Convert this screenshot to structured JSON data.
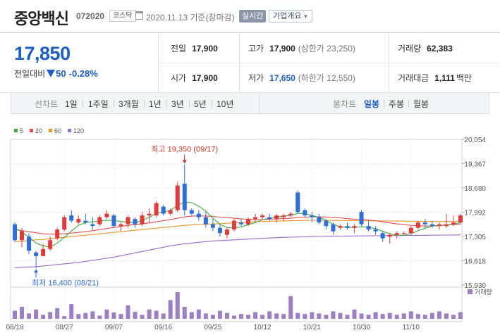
{
  "stock": {
    "name": "중앙백신",
    "code": "072020",
    "market": "코스닥",
    "date": "2020.11.13",
    "basis": "기준(장마감)",
    "realtime_label": "실시간",
    "company_info_label": "기업개요"
  },
  "price": {
    "current": "17,850",
    "change_label": "전일대비",
    "change": "50",
    "change_pct": "-0.28%"
  },
  "quote": {
    "prev": {
      "label": "전일",
      "value": "17,900"
    },
    "high": {
      "label": "고가",
      "value": "17,900",
      "sub_label": "(상한가",
      "sub_value": "23,250)"
    },
    "volume": {
      "label": "거래량",
      "value": "62,383"
    },
    "open": {
      "label": "시가",
      "value": "17,900"
    },
    "low": {
      "label": "저가",
      "value": "17,650",
      "sub_label": "(하한가",
      "sub_value": "12,550)"
    },
    "amount": {
      "label": "거래대금",
      "value": "1,111",
      "unit": "백만"
    }
  },
  "periods": {
    "line_label": "선차트",
    "line": [
      "1일",
      "1주일",
      "3개월",
      "1년",
      "3년",
      "5년",
      "10년"
    ],
    "candle_label": "봉차트",
    "candle": [
      "일봉",
      "주봉",
      "월봉"
    ],
    "active_candle": "일봉"
  },
  "colors": {
    "up": "#e03b3b",
    "down": "#2f6fd6",
    "ma5": "#3faa3f",
    "ma20": "#e05050",
    "ma60": "#e8962a",
    "ma120": "#9b6bcc",
    "volume": "#9d7fc4"
  },
  "chart_data": {
    "type": "candlestick",
    "legend": [
      {
        "name": "5",
        "color": "#3faa3f"
      },
      {
        "name": "20",
        "color": "#e05050"
      },
      {
        "name": "60",
        "color": "#e8962a"
      },
      {
        "name": "120",
        "color": "#9b6bcc"
      }
    ],
    "y_ticks": [
      "20,054",
      "19,367",
      "18,680",
      "17,992",
      "17,305",
      "16,618",
      "15,930"
    ],
    "ylim": [
      15930,
      20054
    ],
    "x_labels": [
      "08/18",
      "08/27",
      "09/07",
      "09/16",
      "09/25",
      "10/12",
      "10/21",
      "10/30",
      "11/10"
    ],
    "x_label_index": [
      0,
      7,
      14,
      21,
      28,
      35,
      42,
      49,
      56
    ],
    "high_annotation": "최고 19,350 (09/17)",
    "low_annotation": "최저 16,400 (08/21)",
    "volume_label": "거래량",
    "candles": [
      {
        "o": 17650,
        "h": 17700,
        "l": 17150,
        "c": 17200
      },
      {
        "o": 17200,
        "h": 17550,
        "l": 17000,
        "c": 17450
      },
      {
        "o": 17300,
        "h": 17400,
        "l": 16800,
        "c": 16900
      },
      {
        "o": 16850,
        "h": 16900,
        "l": 16400,
        "c": 16750
      },
      {
        "o": 16750,
        "h": 17100,
        "l": 16750,
        "c": 16950
      },
      {
        "o": 16950,
        "h": 17300,
        "l": 16900,
        "c": 17200
      },
      {
        "o": 17250,
        "h": 17550,
        "l": 17200,
        "c": 17500
      },
      {
        "o": 17500,
        "h": 17900,
        "l": 17450,
        "c": 17850
      },
      {
        "o": 17900,
        "h": 18050,
        "l": 17700,
        "c": 17750
      },
      {
        "o": 17700,
        "h": 17900,
        "l": 17650,
        "c": 17800
      },
      {
        "o": 17750,
        "h": 17950,
        "l": 17650,
        "c": 17700
      },
      {
        "o": 17650,
        "h": 17850,
        "l": 17500,
        "c": 17600
      },
      {
        "o": 17650,
        "h": 17900,
        "l": 17600,
        "c": 17850
      },
      {
        "o": 17850,
        "h": 18050,
        "l": 17800,
        "c": 17950
      },
      {
        "o": 17900,
        "h": 17950,
        "l": 17550,
        "c": 17600
      },
      {
        "o": 17600,
        "h": 17700,
        "l": 17450,
        "c": 17650
      },
      {
        "o": 17650,
        "h": 17900,
        "l": 17550,
        "c": 17850
      },
      {
        "o": 17800,
        "h": 17850,
        "l": 17550,
        "c": 17650
      },
      {
        "o": 17650,
        "h": 18000,
        "l": 17600,
        "c": 17900
      },
      {
        "o": 17900,
        "h": 18100,
        "l": 17700,
        "c": 17950
      },
      {
        "o": 17900,
        "h": 18300,
        "l": 17850,
        "c": 18250
      },
      {
        "o": 18150,
        "h": 18200,
        "l": 17900,
        "c": 17950
      },
      {
        "o": 17950,
        "h": 18100,
        "l": 17900,
        "c": 18050
      },
      {
        "o": 18050,
        "h": 18850,
        "l": 18000,
        "c": 18750
      },
      {
        "o": 18800,
        "h": 19350,
        "l": 17900,
        "c": 18050
      },
      {
        "o": 18050,
        "h": 18100,
        "l": 17900,
        "c": 17950
      },
      {
        "o": 17950,
        "h": 18050,
        "l": 17750,
        "c": 17850
      },
      {
        "o": 17850,
        "h": 18000,
        "l": 17550,
        "c": 17650
      },
      {
        "o": 17650,
        "h": 17800,
        "l": 17450,
        "c": 17550
      },
      {
        "o": 17550,
        "h": 17650,
        "l": 17300,
        "c": 17400
      },
      {
        "o": 17350,
        "h": 17550,
        "l": 17250,
        "c": 17500
      },
      {
        "o": 17500,
        "h": 17800,
        "l": 17450,
        "c": 17750
      },
      {
        "o": 17700,
        "h": 17800,
        "l": 17600,
        "c": 17650
      },
      {
        "o": 17650,
        "h": 17850,
        "l": 17600,
        "c": 17800
      },
      {
        "o": 17800,
        "h": 17950,
        "l": 17700,
        "c": 17850
      },
      {
        "o": 17850,
        "h": 17950,
        "l": 17800,
        "c": 17900
      },
      {
        "o": 17850,
        "h": 17950,
        "l": 17750,
        "c": 17800
      },
      {
        "o": 17800,
        "h": 17950,
        "l": 17700,
        "c": 17900
      },
      {
        "o": 17850,
        "h": 17950,
        "l": 17750,
        "c": 17900
      },
      {
        "o": 17900,
        "h": 18000,
        "l": 17850,
        "c": 17950
      },
      {
        "o": 18550,
        "h": 18600,
        "l": 17950,
        "c": 18000
      },
      {
        "o": 18050,
        "h": 18100,
        "l": 17850,
        "c": 17900
      },
      {
        "o": 17900,
        "h": 18000,
        "l": 17700,
        "c": 17850
      },
      {
        "o": 17850,
        "h": 17950,
        "l": 17650,
        "c": 17700
      },
      {
        "o": 17750,
        "h": 17800,
        "l": 17500,
        "c": 17600
      },
      {
        "o": 17650,
        "h": 17700,
        "l": 17350,
        "c": 17450
      },
      {
        "o": 17550,
        "h": 17650,
        "l": 17500,
        "c": 17600
      },
      {
        "o": 17600,
        "h": 17700,
        "l": 17500,
        "c": 17550
      },
      {
        "o": 17550,
        "h": 17650,
        "l": 17400,
        "c": 17600
      },
      {
        "o": 18000,
        "h": 18050,
        "l": 17600,
        "c": 17650
      },
      {
        "o": 17600,
        "h": 17750,
        "l": 17450,
        "c": 17500
      },
      {
        "o": 17500,
        "h": 17600,
        "l": 17350,
        "c": 17450
      },
      {
        "o": 17400,
        "h": 17450,
        "l": 17150,
        "c": 17250
      },
      {
        "o": 17300,
        "h": 17400,
        "l": 17100,
        "c": 17350
      },
      {
        "o": 17350,
        "h": 17450,
        "l": 17250,
        "c": 17400
      },
      {
        "o": 17400,
        "h": 17450,
        "l": 17350,
        "c": 17400
      },
      {
        "o": 17400,
        "h": 17600,
        "l": 17350,
        "c": 17550
      },
      {
        "o": 17550,
        "h": 17750,
        "l": 17500,
        "c": 17700
      },
      {
        "o": 17700,
        "h": 17800,
        "l": 17550,
        "c": 17650
      },
      {
        "o": 17650,
        "h": 17750,
        "l": 17550,
        "c": 17600
      },
      {
        "o": 17600,
        "h": 17700,
        "l": 17500,
        "c": 17650
      },
      {
        "o": 17600,
        "h": 17950,
        "l": 17550,
        "c": 17650
      },
      {
        "o": 17650,
        "h": 17900,
        "l": 17600,
        "c": 17700
      },
      {
        "o": 17700,
        "h": 17950,
        "l": 17650,
        "c": 17900
      }
    ],
    "volumes": [
      30,
      45,
      20,
      35,
      15,
      25,
      40,
      10,
      55,
      18,
      22,
      28,
      12,
      35,
      24,
      18,
      50,
      26,
      15,
      35,
      30,
      20,
      70,
      100,
      45,
      25,
      35,
      20,
      15,
      30,
      22,
      12,
      18,
      15,
      25,
      15,
      28,
      20,
      18,
      85,
      22,
      18,
      25,
      20,
      15,
      28,
      22,
      15,
      35,
      20,
      15,
      25,
      18,
      22,
      15,
      20,
      28,
      18,
      15,
      22,
      28,
      20,
      15,
      25
    ],
    "ma5": [
      17550,
      17430,
      17280,
      17120,
      17040,
      17000,
      17120,
      17280,
      17460,
      17620,
      17700,
      17720,
      17740,
      17760,
      17760,
      17730,
      17710,
      17700,
      17760,
      17850,
      17960,
      18000,
      18040,
      18190,
      18280,
      18260,
      18160,
      18020,
      17820,
      17650,
      17560,
      17540,
      17580,
      17640,
      17700,
      17780,
      17820,
      17850,
      17880,
      17900,
      17960,
      17950,
      17900,
      17850,
      17760,
      17650,
      17580,
      17560,
      17560,
      17580,
      17560,
      17530,
      17450,
      17380,
      17340,
      17340,
      17380,
      17470,
      17540,
      17600,
      17620,
      17630,
      17650,
      17700
    ],
    "ma20": [
      17500,
      17470,
      17440,
      17410,
      17380,
      17370,
      17370,
      17380,
      17400,
      17420,
      17440,
      17470,
      17500,
      17530,
      17560,
      17590,
      17620,
      17640,
      17660,
      17690,
      17720,
      17750,
      17780,
      17820,
      17860,
      17880,
      17890,
      17880,
      17870,
      17850,
      17840,
      17820,
      17800,
      17790,
      17780,
      17780,
      17790,
      17800,
      17810,
      17820,
      17840,
      17850,
      17860,
      17860,
      17850,
      17840,
      17830,
      17810,
      17790,
      17780,
      17770,
      17750,
      17720,
      17690,
      17660,
      17640,
      17620,
      17610,
      17600,
      17600,
      17610,
      17630,
      17640,
      17650
    ],
    "ma60": [
      17150,
      17170,
      17190,
      17210,
      17220,
      17240,
      17260,
      17280,
      17300,
      17320,
      17340,
      17360,
      17380,
      17400,
      17420,
      17440,
      17460,
      17480,
      17500,
      17520,
      17540,
      17560,
      17580,
      17600,
      17620,
      17630,
      17640,
      17650,
      17660,
      17670,
      17680,
      17690,
      17700,
      17710,
      17720,
      17730,
      17735,
      17740,
      17745,
      17750,
      17755,
      17758,
      17760,
      17760,
      17760,
      17758,
      17756,
      17754,
      17752,
      17750,
      17748,
      17746,
      17744,
      17742,
      17740,
      17738,
      17736,
      17734,
      17732,
      17730,
      17730,
      17730,
      17730,
      17730
    ],
    "ma120": [
      16420,
      16430,
      16440,
      16450,
      16470,
      16490,
      16510,
      16530,
      16550,
      16570,
      16600,
      16630,
      16660,
      16690,
      16720,
      16760,
      16800,
      16840,
      16880,
      16920,
      16960,
      17000,
      17040,
      17070,
      17100,
      17120,
      17140,
      17160,
      17180,
      17190,
      17200,
      17210,
      17220,
      17230,
      17240,
      17250,
      17260,
      17270,
      17280,
      17285,
      17290,
      17295,
      17300,
      17305,
      17310,
      17312,
      17314,
      17316,
      17318,
      17320,
      17322,
      17324,
      17326,
      17328,
      17330,
      17332,
      17334,
      17336,
      17338,
      17340,
      17342,
      17344,
      17346,
      17348
    ]
  }
}
